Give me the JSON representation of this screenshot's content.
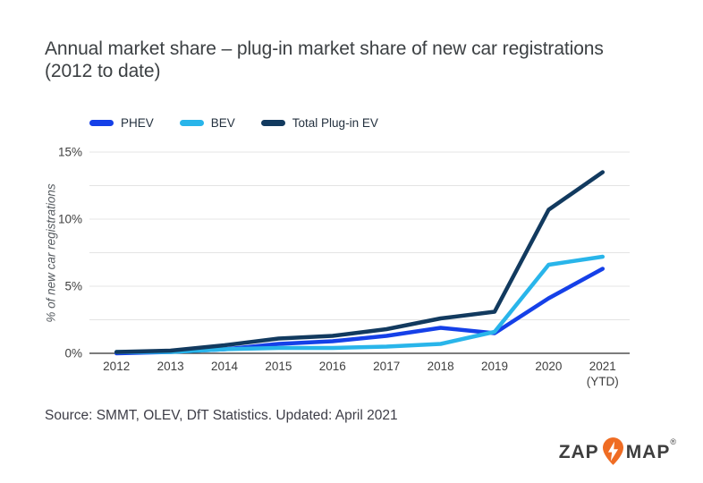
{
  "chart_data": {
    "type": "line",
    "title": "Annual market share – plug-in market share of new car registrations (2012 to date)",
    "title_lines": [
      "Annual market share – plug-in market share of new car registrations",
      "(2012 to date)"
    ],
    "categories": [
      "2012",
      "2013",
      "2014",
      "2015",
      "2016",
      "2017",
      "2018",
      "2019",
      "2020",
      "2021 (YTD)"
    ],
    "series": [
      {
        "name": "PHEV",
        "color": "#1540e8",
        "values": [
          0.0,
          0.1,
          0.3,
          0.7,
          0.9,
          1.3,
          1.9,
          1.5,
          4.1,
          6.3
        ]
      },
      {
        "name": "BEV",
        "color": "#29b5ea",
        "values": [
          0.1,
          0.1,
          0.3,
          0.4,
          0.4,
          0.5,
          0.7,
          1.6,
          6.6,
          7.2
        ]
      },
      {
        "name": "Total Plug-in EV",
        "color": "#123a5f",
        "values": [
          0.1,
          0.2,
          0.6,
          1.1,
          1.3,
          1.8,
          2.6,
          3.1,
          10.7,
          13.5
        ]
      }
    ],
    "xlabel": "",
    "ylabel": "% of new car registrations",
    "ylim": [
      0,
      15
    ],
    "yticks": [
      {
        "value": 0,
        "label": "0%"
      },
      {
        "value": 5,
        "label": "5%"
      },
      {
        "value": 10,
        "label": "10%"
      },
      {
        "value": 15,
        "label": "15%"
      }
    ],
    "grid": true,
    "grid_step": 2.5,
    "legend_position": "top"
  },
  "source_note": "Source: SMMT, OLEV, DfT Statistics. Updated: April 2021",
  "logo": {
    "part1": "ZAP",
    "part2": "MAP",
    "registered": "®",
    "pin_color": "#ef6c23",
    "bolt_color": "#ffffff",
    "text_color": "#3e3e3e"
  },
  "colors": {
    "title_text": "#3c4043",
    "axis_text": "#3f3f3f",
    "gridline": "#e4e4e4",
    "axis_line": "#2e2e2e",
    "background": "#ffffff"
  }
}
